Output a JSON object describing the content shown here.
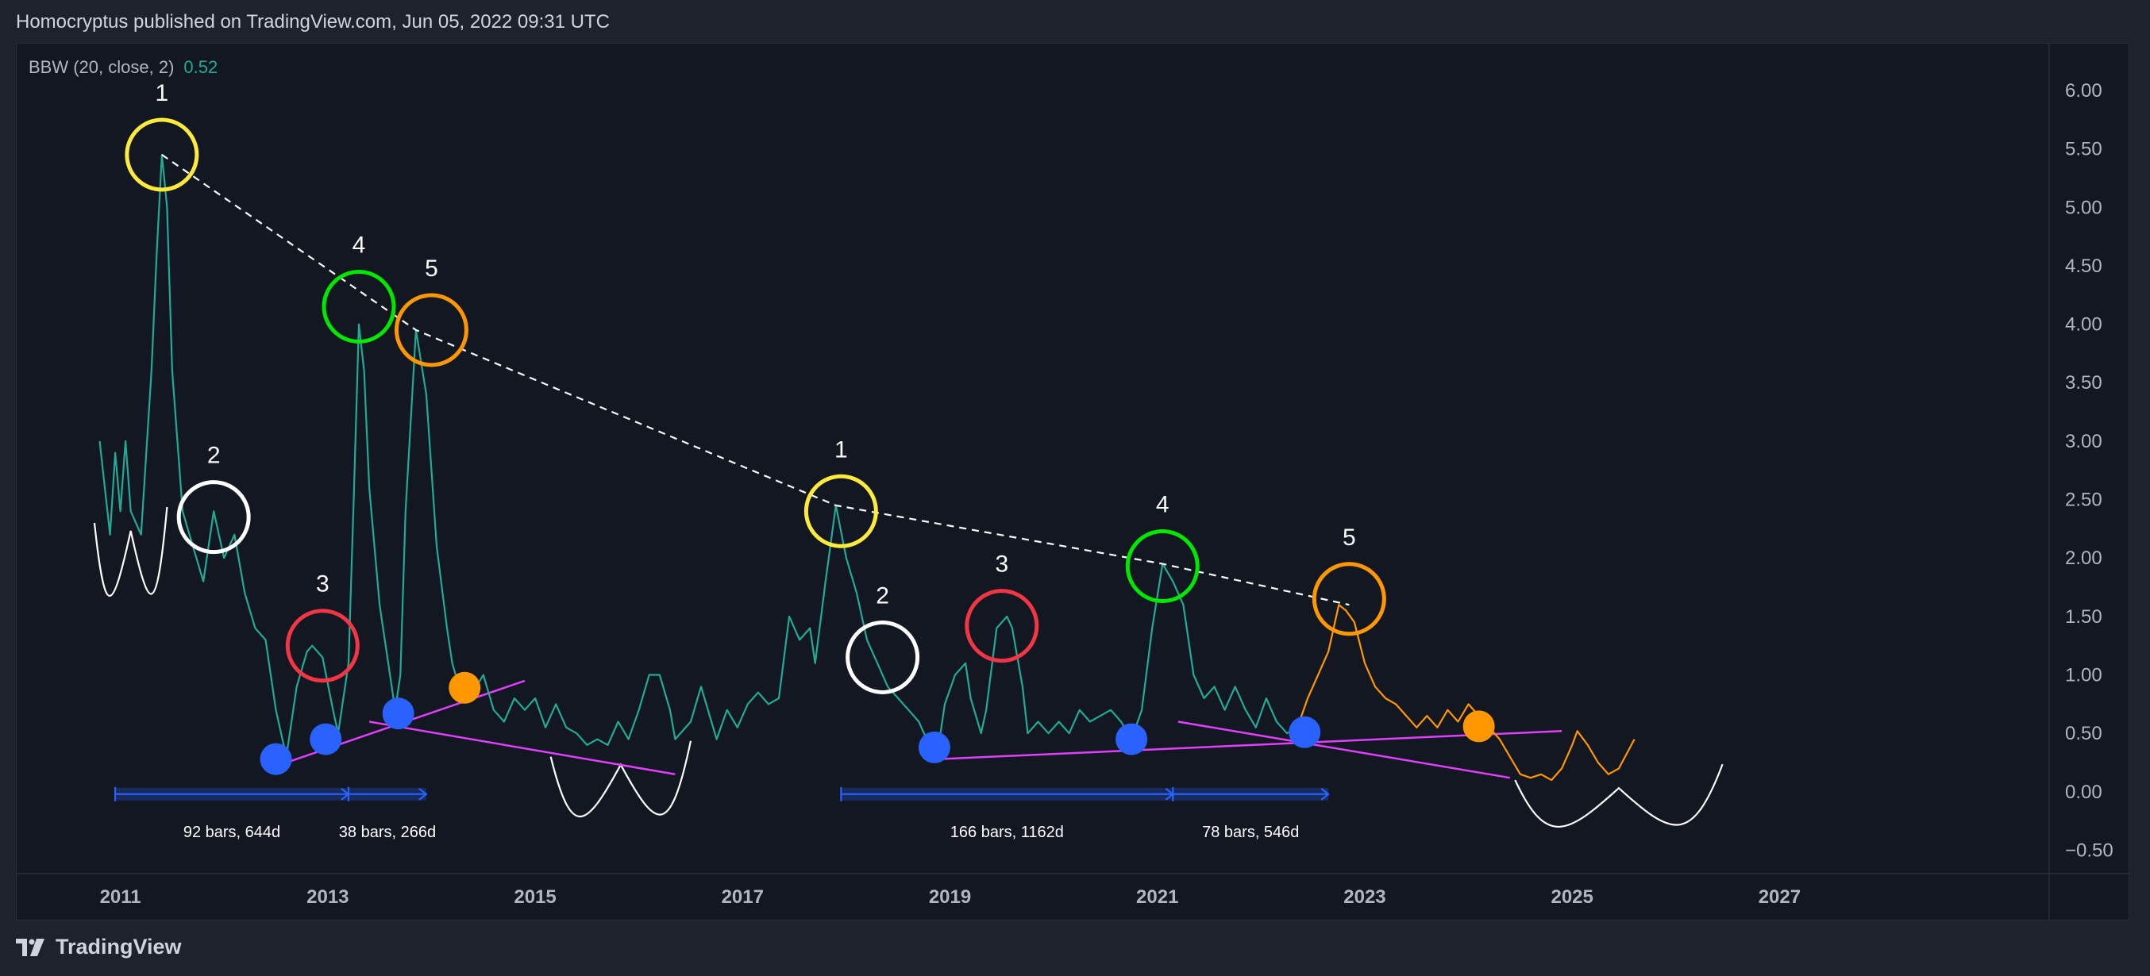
{
  "header": {
    "published_text": "Homocryptus published on TradingView.com, Jun 05, 2022 09:31 UTC"
  },
  "indicator": {
    "name": "BBW (20, close, 2)",
    "value": "0.52"
  },
  "footer": {
    "brand": "TradingView"
  },
  "colors": {
    "background": "#131722",
    "page": "#1e222d",
    "series_teal": "#22ab94",
    "series_orange": "#ff9800",
    "trendline_pink": "#e040fb",
    "blue_dot": "#2962ff",
    "yellow": "#ffeb3b",
    "white": "#ffffff",
    "red": "#f23645",
    "green": "#00e600",
    "orange": "#ff9800",
    "range_blue": "#2962ff"
  },
  "chart_data": {
    "type": "line",
    "title": "",
    "xlabel": "",
    "ylabel": "",
    "xlim": [
      2010.0,
      2029.6
    ],
    "ylim": [
      -0.7,
      6.4
    ],
    "x_ticks": [
      "2011",
      "2013",
      "2015",
      "2017",
      "2019",
      "2021",
      "2023",
      "2025",
      "2027"
    ],
    "y_ticks": [
      "6.00",
      "5.50",
      "5.00",
      "4.50",
      "4.00",
      "3.50",
      "3.00",
      "2.50",
      "2.00",
      "1.50",
      "1.00",
      "0.50",
      "0.00",
      "−0.50"
    ],
    "grid": false,
    "series": [
      {
        "color": "#22ab94",
        "points": [
          [
            2010.8,
            3.0
          ],
          [
            2010.9,
            2.2
          ],
          [
            2010.95,
            2.9
          ],
          [
            2011.0,
            2.4
          ],
          [
            2011.05,
            3.0
          ],
          [
            2011.1,
            2.4
          ],
          [
            2011.2,
            2.2
          ],
          [
            2011.3,
            3.6
          ],
          [
            2011.35,
            4.6
          ],
          [
            2011.4,
            5.45
          ],
          [
            2011.45,
            5.0
          ],
          [
            2011.5,
            3.6
          ],
          [
            2011.6,
            2.4
          ],
          [
            2011.7,
            2.1
          ],
          [
            2011.8,
            1.8
          ],
          [
            2011.9,
            2.4
          ],
          [
            2012.0,
            2.0
          ],
          [
            2012.1,
            2.2
          ],
          [
            2012.2,
            1.7
          ],
          [
            2012.3,
            1.4
          ],
          [
            2012.4,
            1.3
          ],
          [
            2012.45,
            1.0
          ],
          [
            2012.5,
            0.7
          ],
          [
            2012.6,
            0.3
          ],
          [
            2012.7,
            0.9
          ],
          [
            2012.8,
            1.2
          ],
          [
            2012.85,
            1.25
          ],
          [
            2012.95,
            1.15
          ],
          [
            2013.05,
            0.7
          ],
          [
            2013.1,
            0.5
          ],
          [
            2013.2,
            1.1
          ],
          [
            2013.25,
            2.5
          ],
          [
            2013.3,
            4.0
          ],
          [
            2013.35,
            3.6
          ],
          [
            2013.4,
            2.6
          ],
          [
            2013.5,
            1.6
          ],
          [
            2013.6,
            1.0
          ],
          [
            2013.65,
            0.7
          ],
          [
            2013.7,
            1.0
          ],
          [
            2013.75,
            2.4
          ],
          [
            2013.85,
            3.95
          ],
          [
            2013.95,
            3.4
          ],
          [
            2014.05,
            2.1
          ],
          [
            2014.15,
            1.4
          ],
          [
            2014.2,
            1.1
          ],
          [
            2014.3,
            0.8
          ],
          [
            2014.4,
            0.85
          ],
          [
            2014.5,
            1.0
          ],
          [
            2014.6,
            0.7
          ],
          [
            2014.7,
            0.6
          ],
          [
            2014.8,
            0.8
          ],
          [
            2014.9,
            0.7
          ],
          [
            2015.0,
            0.8
          ],
          [
            2015.1,
            0.55
          ],
          [
            2015.2,
            0.75
          ],
          [
            2015.3,
            0.55
          ],
          [
            2015.4,
            0.5
          ],
          [
            2015.5,
            0.4
          ],
          [
            2015.6,
            0.45
          ],
          [
            2015.7,
            0.4
          ],
          [
            2015.8,
            0.6
          ],
          [
            2015.9,
            0.45
          ],
          [
            2016.0,
            0.7
          ],
          [
            2016.1,
            1.0
          ],
          [
            2016.2,
            1.0
          ],
          [
            2016.3,
            0.7
          ],
          [
            2016.35,
            0.45
          ],
          [
            2016.5,
            0.6
          ],
          [
            2016.6,
            0.9
          ],
          [
            2016.7,
            0.6
          ],
          [
            2016.75,
            0.45
          ],
          [
            2016.85,
            0.7
          ],
          [
            2016.95,
            0.55
          ],
          [
            2017.05,
            0.75
          ],
          [
            2017.15,
            0.85
          ],
          [
            2017.25,
            0.75
          ],
          [
            2017.35,
            0.8
          ],
          [
            2017.45,
            1.5
          ],
          [
            2017.55,
            1.3
          ],
          [
            2017.65,
            1.4
          ],
          [
            2017.7,
            1.1
          ],
          [
            2017.8,
            1.8
          ],
          [
            2017.9,
            2.45
          ],
          [
            2018.0,
            2.0
          ],
          [
            2018.1,
            1.7
          ],
          [
            2018.2,
            1.3
          ],
          [
            2018.3,
            1.1
          ],
          [
            2018.4,
            0.9
          ],
          [
            2018.5,
            0.8
          ],
          [
            2018.6,
            0.7
          ],
          [
            2018.7,
            0.6
          ],
          [
            2018.8,
            0.4
          ],
          [
            2018.9,
            0.45
          ],
          [
            2018.95,
            0.75
          ],
          [
            2019.05,
            1.0
          ],
          [
            2019.15,
            1.1
          ],
          [
            2019.2,
            0.8
          ],
          [
            2019.3,
            0.5
          ],
          [
            2019.35,
            0.7
          ],
          [
            2019.45,
            1.4
          ],
          [
            2019.55,
            1.5
          ],
          [
            2019.6,
            1.4
          ],
          [
            2019.7,
            0.9
          ],
          [
            2019.75,
            0.5
          ],
          [
            2019.85,
            0.6
          ],
          [
            2019.95,
            0.5
          ],
          [
            2020.05,
            0.6
          ],
          [
            2020.15,
            0.5
          ],
          [
            2020.25,
            0.7
          ],
          [
            2020.35,
            0.6
          ],
          [
            2020.45,
            0.65
          ],
          [
            2020.55,
            0.7
          ],
          [
            2020.65,
            0.6
          ],
          [
            2020.75,
            0.45
          ],
          [
            2020.85,
            0.7
          ],
          [
            2020.95,
            1.4
          ],
          [
            2021.05,
            1.95
          ],
          [
            2021.15,
            1.8
          ],
          [
            2021.25,
            1.6
          ],
          [
            2021.35,
            1.0
          ],
          [
            2021.45,
            0.8
          ],
          [
            2021.55,
            0.9
          ],
          [
            2021.65,
            0.7
          ],
          [
            2021.75,
            0.9
          ],
          [
            2021.85,
            0.7
          ],
          [
            2021.95,
            0.55
          ],
          [
            2022.05,
            0.8
          ],
          [
            2022.15,
            0.6
          ],
          [
            2022.25,
            0.5
          ],
          [
            2022.35,
            0.55
          ]
        ]
      },
      {
        "color": "#ff9800",
        "points": [
          [
            2022.35,
            0.55
          ],
          [
            2022.45,
            0.8
          ],
          [
            2022.55,
            1.0
          ],
          [
            2022.65,
            1.2
          ],
          [
            2022.75,
            1.6
          ],
          [
            2022.82,
            1.55
          ],
          [
            2022.9,
            1.45
          ],
          [
            2023.0,
            1.1
          ],
          [
            2023.1,
            0.9
          ],
          [
            2023.2,
            0.8
          ],
          [
            2023.3,
            0.75
          ],
          [
            2023.4,
            0.65
          ],
          [
            2023.5,
            0.55
          ],
          [
            2023.6,
            0.65
          ],
          [
            2023.7,
            0.55
          ],
          [
            2023.8,
            0.7
          ],
          [
            2023.9,
            0.6
          ],
          [
            2024.0,
            0.75
          ],
          [
            2024.1,
            0.65
          ],
          [
            2024.2,
            0.55
          ],
          [
            2024.3,
            0.45
          ],
          [
            2024.4,
            0.3
          ],
          [
            2024.5,
            0.15
          ],
          [
            2024.6,
            0.12
          ],
          [
            2024.7,
            0.15
          ],
          [
            2024.8,
            0.1
          ],
          [
            2024.9,
            0.2
          ],
          [
            2025.0,
            0.4
          ],
          [
            2025.05,
            0.52
          ],
          [
            2025.15,
            0.4
          ],
          [
            2025.25,
            0.25
          ],
          [
            2025.35,
            0.15
          ],
          [
            2025.45,
            0.2
          ],
          [
            2025.6,
            0.45
          ]
        ]
      }
    ],
    "annotations": {
      "dashed_trendline": [
        [
          2011.4,
          5.45
        ],
        [
          2013.85,
          3.95
        ],
        [
          2017.9,
          2.45
        ],
        [
          2021.05,
          1.95
        ],
        [
          2022.85,
          1.6
        ]
      ],
      "pink_trendlines": [
        [
          [
            2012.6,
            0.25
          ],
          [
            2014.9,
            0.95
          ]
        ],
        [
          [
            2013.4,
            0.6
          ],
          [
            2016.35,
            0.15
          ]
        ],
        [
          [
            2018.9,
            0.28
          ],
          [
            2024.9,
            0.52
          ]
        ],
        [
          [
            2021.2,
            0.6
          ],
          [
            2024.4,
            0.12
          ]
        ]
      ],
      "circles": [
        {
          "x": 2011.4,
          "y": 5.45,
          "color": "#ffeb3b",
          "label": "1"
        },
        {
          "x": 2011.9,
          "y": 2.35,
          "color": "#ffffff",
          "label": "2"
        },
        {
          "x": 2012.95,
          "y": 1.25,
          "color": "#f23645",
          "label": "3"
        },
        {
          "x": 2013.3,
          "y": 4.15,
          "color": "#00e600",
          "label": "4"
        },
        {
          "x": 2014.0,
          "y": 3.95,
          "color": "#ff9800",
          "label": "5"
        },
        {
          "x": 2017.95,
          "y": 2.4,
          "color": "#ffeb3b",
          "label": "1"
        },
        {
          "x": 2018.35,
          "y": 1.15,
          "color": "#ffffff",
          "label": "2"
        },
        {
          "x": 2019.5,
          "y": 1.42,
          "color": "#f23645",
          "label": "3"
        },
        {
          "x": 2021.05,
          "y": 1.93,
          "color": "#00e600",
          "label": "4"
        },
        {
          "x": 2022.85,
          "y": 1.65,
          "color": "#ff9800",
          "label": "5"
        }
      ],
      "dots": [
        {
          "x": 2012.5,
          "y": 0.28,
          "color": "#2962ff"
        },
        {
          "x": 2012.98,
          "y": 0.45,
          "color": "#2962ff"
        },
        {
          "x": 2013.68,
          "y": 0.67,
          "color": "#2962ff"
        },
        {
          "x": 2014.32,
          "y": 0.89,
          "color": "#ff9800"
        },
        {
          "x": 2018.85,
          "y": 0.38,
          "color": "#2962ff"
        },
        {
          "x": 2020.75,
          "y": 0.45,
          "color": "#2962ff"
        },
        {
          "x": 2022.42,
          "y": 0.51,
          "color": "#2962ff"
        },
        {
          "x": 2024.1,
          "y": 0.56,
          "color": "#ff9800"
        }
      ],
      "measure_ranges": [
        {
          "x1": 2010.95,
          "x2": 2013.2,
          "label": "92 bars, 644d"
        },
        {
          "x1": 2013.2,
          "x2": 2013.95,
          "label": "38 bars, 266d"
        },
        {
          "x1": 2017.95,
          "x2": 2021.15,
          "label": "166 bars, 1162d"
        },
        {
          "x1": 2021.15,
          "x2": 2022.65,
          "label": "78 bars, 546d"
        }
      ],
      "arcs": [
        {
          "x1": 2010.75,
          "x2": 2011.45,
          "y_top": 2.3,
          "y_bottom": 1.7
        },
        {
          "x1": 2015.15,
          "x2": 2016.5,
          "y_top": 0.3,
          "y_bottom": -0.15
        },
        {
          "x1": 2024.45,
          "x2": 2026.45,
          "y_top": 0.1,
          "y_bottom": -0.2
        }
      ]
    }
  }
}
